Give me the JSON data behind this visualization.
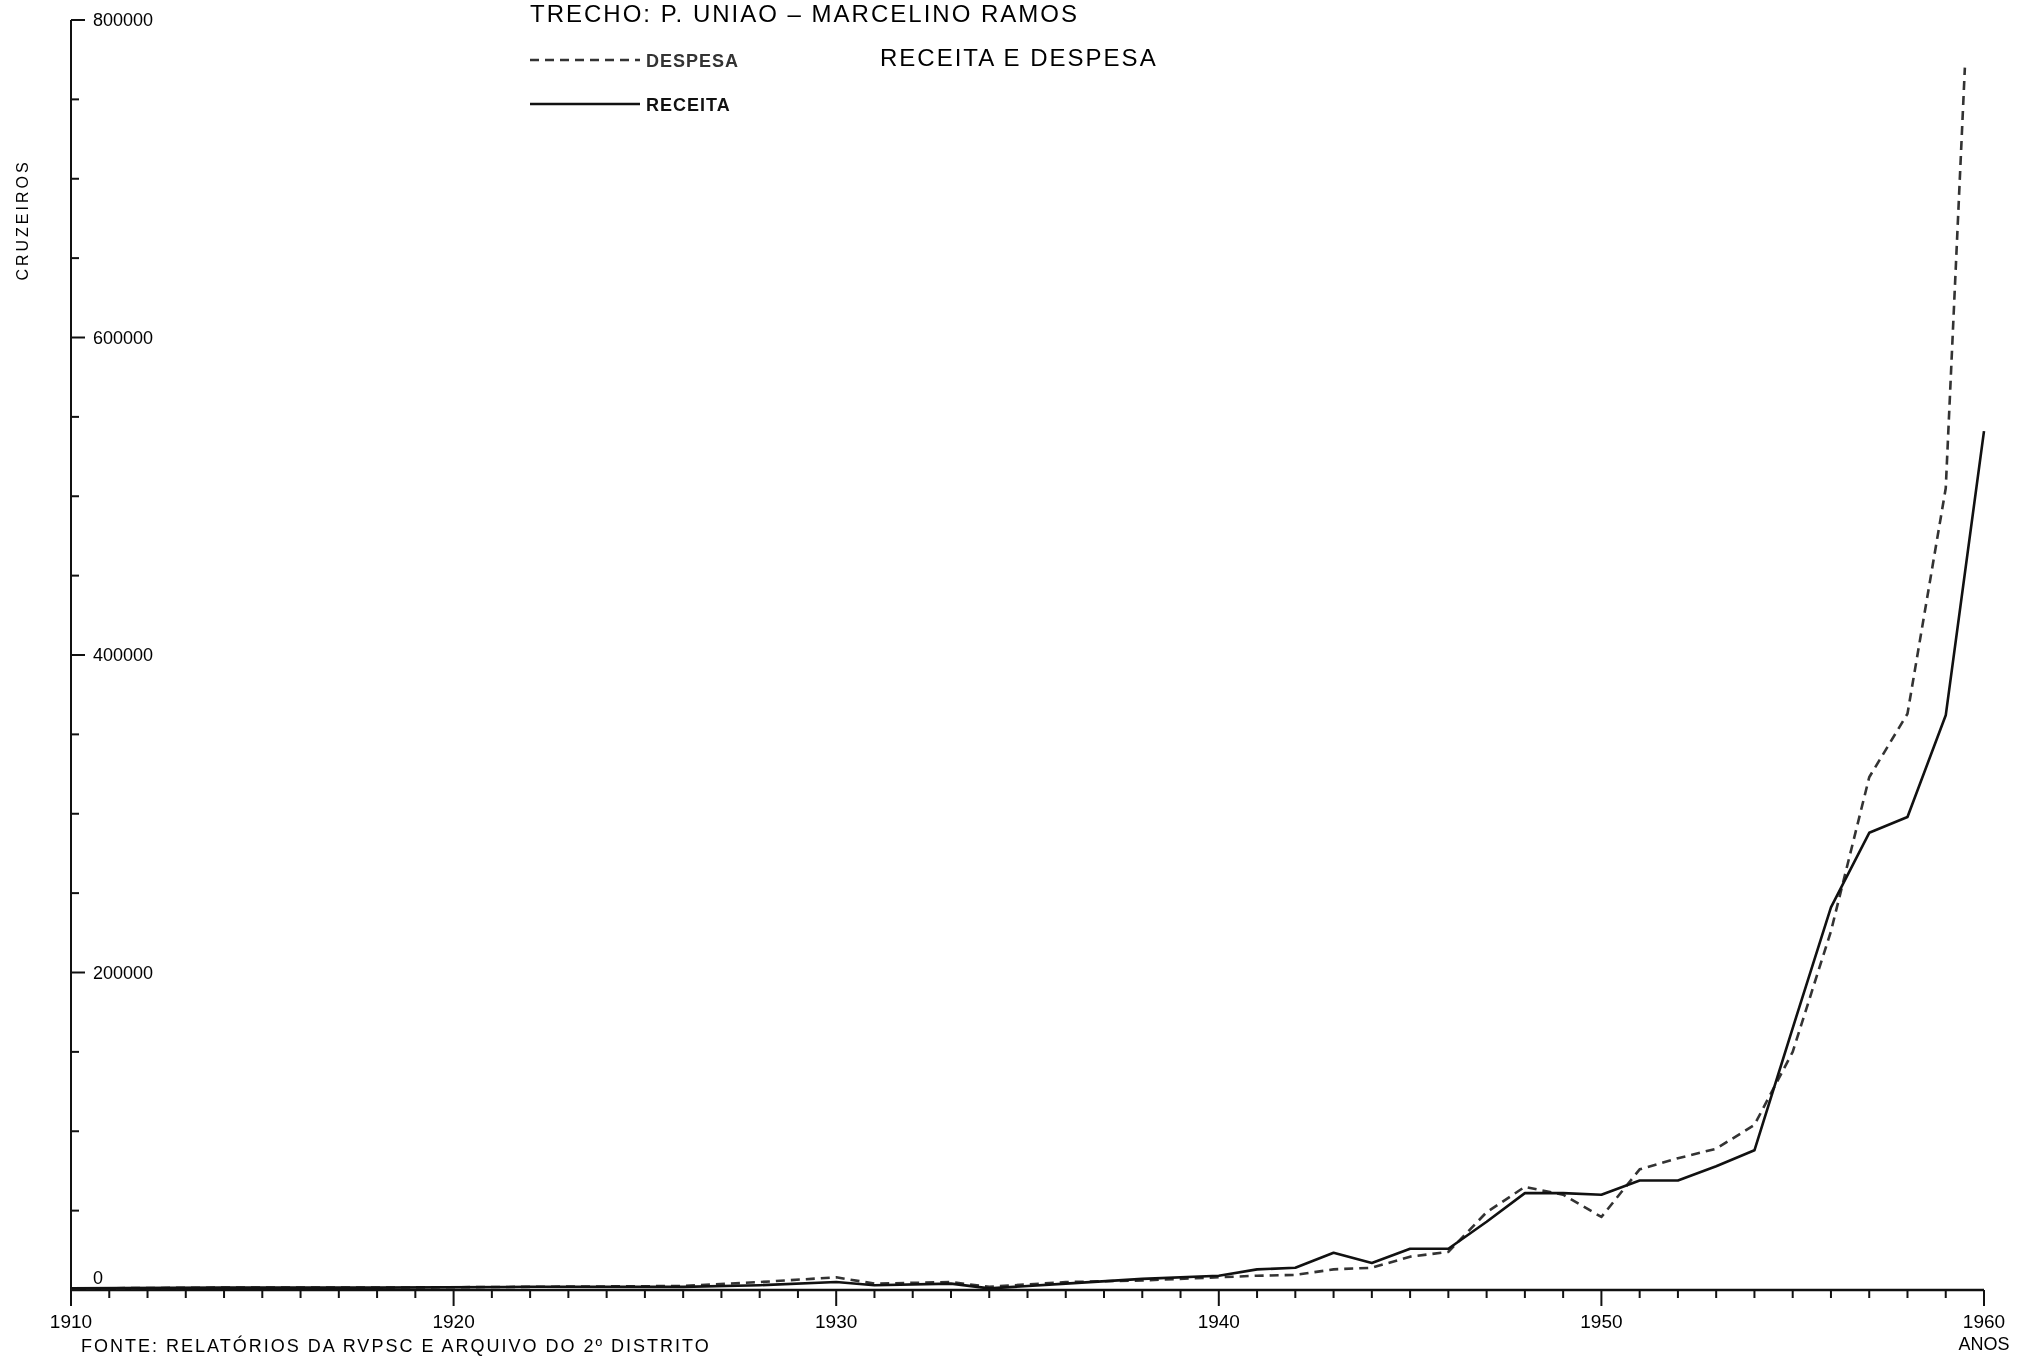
{
  "chart_data": {
    "type": "line",
    "title": "TRECHO:  P. UNIAO  –  MARCELINO RAMOS",
    "subtitle": "RECEITA E DESPESA",
    "ylabel": "CRUZEIROS",
    "xlabel": "ANOS",
    "annotations": [
      "FONTE: RELATÓRIOS DA RVPSC E ARQUIVO DO 2º DISTRITO"
    ],
    "xlim": [
      1910,
      1960
    ],
    "xticks": [
      1910,
      {
        "value": 1911,
        "label": null
      },
      {
        "value": 1912,
        "label": null
      },
      {
        "value": 1913,
        "label": null
      },
      {
        "value": 1914,
        "label": null
      },
      {
        "value": 1915,
        "label": null
      },
      {
        "value": 1916,
        "label": null
      },
      {
        "value": 1917,
        "label": null
      },
      {
        "value": 1918,
        "label": null
      },
      {
        "value": 1919,
        "label": null
      },
      1920,
      {
        "value": 1921,
        "label": null
      },
      {
        "value": 1922,
        "label": null
      },
      {
        "value": 1923,
        "label": null
      },
      {
        "value": 1924,
        "label": null
      },
      {
        "value": 1925,
        "label": null
      },
      {
        "value": 1926,
        "label": null
      },
      {
        "value": 1927,
        "label": null
      },
      {
        "value": 1928,
        "label": null
      },
      {
        "value": 1929,
        "label": null
      },
      1930,
      {
        "value": 1931,
        "label": null
      },
      {
        "value": 1932,
        "label": null
      },
      {
        "value": 1933,
        "label": null
      },
      {
        "value": 1934,
        "label": null
      },
      {
        "value": 1935,
        "label": null
      },
      {
        "value": 1936,
        "label": null
      },
      {
        "value": 1937,
        "label": null
      },
      {
        "value": 1938,
        "label": null
      },
      {
        "value": 1939,
        "label": null
      },
      1940,
      {
        "value": 1941,
        "label": null
      },
      {
        "value": 1942,
        "label": null
      },
      {
        "value": 1943,
        "label": null
      },
      {
        "value": 1944,
        "label": null
      },
      {
        "value": 1945,
        "label": null
      },
      {
        "value": 1946,
        "label": null
      },
      {
        "value": 1947,
        "label": null
      },
      {
        "value": 1948,
        "label": null
      },
      {
        "value": 1949,
        "label": null
      },
      1950,
      {
        "value": 1951,
        "label": null
      },
      {
        "value": 1952,
        "label": null
      },
      {
        "value": 1953,
        "label": null
      },
      {
        "value": 1954,
        "label": null
      },
      {
        "value": 1955,
        "label": null
      },
      {
        "value": 1956,
        "label": null
      },
      {
        "value": 1957,
        "label": null
      },
      {
        "value": 1958,
        "label": null
      },
      {
        "value": 1959,
        "label": null
      },
      1960
    ],
    "ylim": [
      0,
      800000
    ],
    "yticks": [
      0,
      {
        "value": 50000,
        "label": null
      },
      {
        "value": 100000,
        "label": null
      },
      {
        "value": 150000,
        "label": null
      },
      200000,
      {
        "value": 250000,
        "label": null
      },
      {
        "value": 300000,
        "label": null
      },
      {
        "value": 350000,
        "label": null
      },
      400000,
      {
        "value": 450000,
        "label": null
      },
      {
        "value": 500000,
        "label": null
      },
      {
        "value": 550000,
        "label": null
      },
      600000,
      {
        "value": 650000,
        "label": null
      },
      {
        "value": 700000,
        "label": null
      },
      {
        "value": 750000,
        "label": null
      },
      800000
    ],
    "legend": "top",
    "grid": false,
    "series": [
      {
        "name": "DESPESA",
        "color": "#333333",
        "line_style": "dashed",
        "x": [
          1910,
          1914,
          1918,
          1922,
          1926,
          1928,
          1930,
          1931,
          1933,
          1934,
          1936,
          1938,
          1940,
          1941,
          1942,
          1943,
          1944,
          1945,
          1946,
          1947,
          1948,
          1949,
          1950,
          1951,
          1952,
          1953,
          1954,
          1955,
          1956,
          1957,
          1958,
          1959,
          1959.5
        ],
        "values": [
          1000,
          1500,
          1500,
          2000,
          2500,
          5000,
          8000,
          4000,
          5000,
          2000,
          5000,
          6000,
          8000,
          9000,
          9500,
          13000,
          14000,
          21000,
          24000,
          49000,
          65000,
          60000,
          46000,
          76000,
          83000,
          89000,
          104000,
          150000,
          226000,
          323000,
          363000,
          505000,
          770000
        ]
      },
      {
        "name": "RECEITA",
        "color": "#111111",
        "line_style": "solid",
        "x": [
          1910,
          1914,
          1918,
          1922,
          1926,
          1928,
          1930,
          1931,
          1933,
          1934,
          1936,
          1938,
          1940,
          1941,
          1942,
          1943,
          1944,
          1945,
          1946,
          1947,
          1948,
          1949,
          1950,
          1951,
          1952,
          1953,
          1954,
          1955,
          1956,
          1957,
          1958,
          1959,
          1960
        ],
        "values": [
          1000,
          1500,
          1500,
          2000,
          2000,
          3000,
          5000,
          3000,
          4000,
          1000,
          4000,
          7000,
          9000,
          13000,
          14000,
          23500,
          17000,
          26000,
          26000,
          43000,
          61000,
          61000,
          60000,
          69000,
          69000,
          78000,
          88000,
          165000,
          241000,
          288000,
          298000,
          362000,
          541000
        ]
      }
    ]
  }
}
